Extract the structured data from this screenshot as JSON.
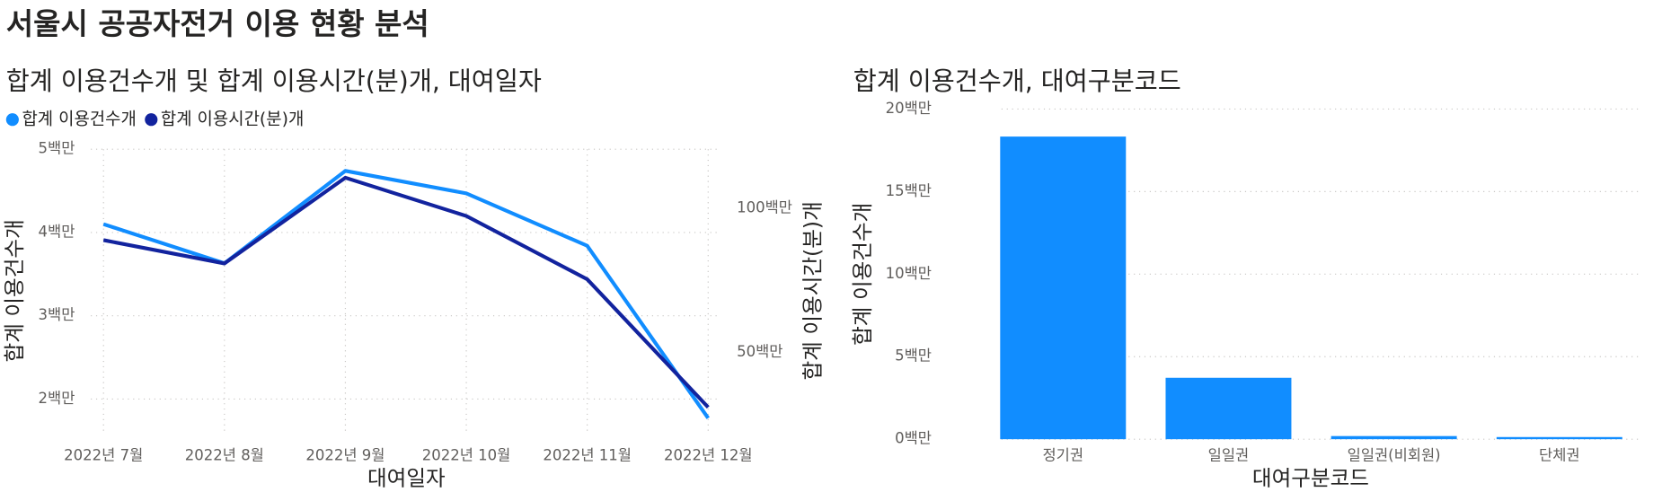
{
  "title": "서울시 공공자전거 이용 현황 분석",
  "chart_data": [
    {
      "type": "line",
      "title": "합계 이용건수개 및 합계 이용시간(분)개, 대여일자",
      "x_label": "대여일자",
      "y_label": "합계 이용건수개",
      "y2_label": "합계 이용시간(분)개",
      "categories": [
        "2022년 7월",
        "2022년 8월",
        "2022년 9월",
        "2022년 10월",
        "2022년 11월",
        "2022년 12월"
      ],
      "series": [
        {
          "name": "합계 이용건수개",
          "color": "#118DFF",
          "values": [
            4100000,
            3630000,
            4740000,
            4470000,
            3840000,
            1770000
          ]
        },
        {
          "name": "합계 이용시간(분)개",
          "color": "#12239E",
          "axis": "y2",
          "values": [
            89000000,
            80900000,
            110700000,
            97400000,
            75400000,
            30900000
          ]
        }
      ],
      "ylim": [
        1600000,
        5000000
      ],
      "yticks": [
        {
          "value": 2000000,
          "label": "2백만"
        },
        {
          "value": 3000000,
          "label": "3백만"
        },
        {
          "value": 4000000,
          "label": "4백만"
        },
        {
          "value": 5000000,
          "label": "5백만"
        }
      ],
      "y2lim": [
        22200000,
        120600000
      ],
      "y2ticks": [
        {
          "value": 50000000,
          "label": "50백만"
        },
        {
          "value": 100000000,
          "label": "100백만"
        }
      ],
      "grid": true,
      "legend": "top-left"
    },
    {
      "type": "bar",
      "title": "합계 이용건수개, 대여구분코드",
      "x_label": "대여구분코드",
      "y_label": "합계 이용건수개",
      "categories": [
        "정기권",
        "일일권",
        "일일권(비회원)",
        "단체권"
      ],
      "values": [
        18330000,
        3720000,
        190000,
        130000
      ],
      "color": "#118DFF",
      "ylim": [
        0,
        20000000
      ],
      "yticks": [
        {
          "value": 0,
          "label": "0백만"
        },
        {
          "value": 5000000,
          "label": "5백만"
        },
        {
          "value": 10000000,
          "label": "10백만"
        },
        {
          "value": 15000000,
          "label": "15백만"
        },
        {
          "value": 20000000,
          "label": "20백만"
        }
      ],
      "grid": true
    }
  ]
}
